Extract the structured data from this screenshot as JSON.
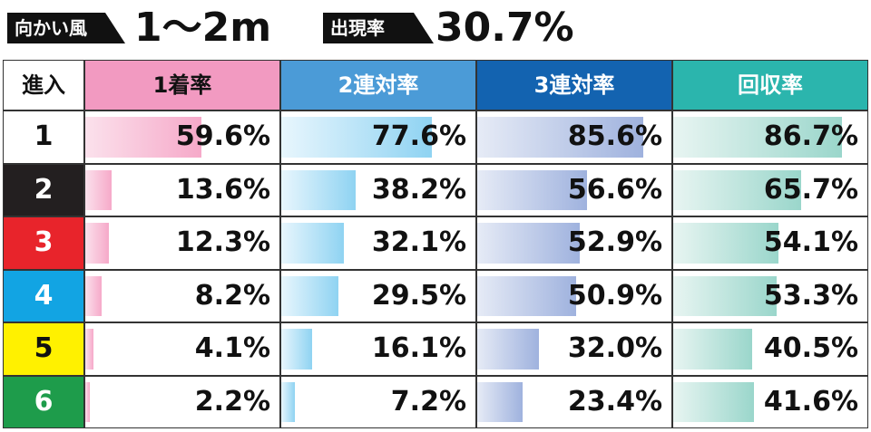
{
  "header": {
    "wind_label": "向かい風",
    "wind_value": "1〜2m",
    "rate_label": "出現率",
    "rate_value": "30.7%"
  },
  "chart_data": {
    "type": "table",
    "row_header": "進入",
    "columns": [
      {
        "name": "1着率",
        "color": "#f29ac1",
        "bar_from": "#fbe1ec",
        "bar_to": "#f6a9c9",
        "text": "#111111"
      },
      {
        "name": "2連対率",
        "color": "#4b9bd7",
        "bar_from": "#e8f6fd",
        "bar_to": "#8fd3f2",
        "text": "#ffffff"
      },
      {
        "name": "3連対率",
        "color": "#1363b0",
        "bar_from": "#e6ebf6",
        "bar_to": "#9fb2de",
        "text": "#ffffff"
      },
      {
        "name": "回収率",
        "color": "#2bb5ad",
        "bar_from": "#e8f5f2",
        "bar_to": "#9ad6cb",
        "text": "#ffffff"
      }
    ],
    "rows": [
      {
        "lane": "1",
        "bg": "#ffffff",
        "fg": "#111111",
        "values": [
          59.6,
          77.6,
          85.6,
          86.7
        ],
        "labels": [
          "59.6%",
          "77.6%",
          "85.6%",
          "86.7%"
        ]
      },
      {
        "lane": "2",
        "bg": "#231f20",
        "fg": "#ffffff",
        "values": [
          13.6,
          38.2,
          56.6,
          65.7
        ],
        "labels": [
          "13.6%",
          "38.2%",
          "56.6%",
          "65.7%"
        ]
      },
      {
        "lane": "3",
        "bg": "#e8242b",
        "fg": "#ffffff",
        "values": [
          12.3,
          32.1,
          52.9,
          54.1
        ],
        "labels": [
          "12.3%",
          "32.1%",
          "52.9%",
          "54.1%"
        ]
      },
      {
        "lane": "4",
        "bg": "#12a4e3",
        "fg": "#ffffff",
        "values": [
          8.2,
          29.5,
          50.9,
          53.3
        ],
        "labels": [
          "8.2%",
          "29.5%",
          "50.9%",
          "53.3%"
        ]
      },
      {
        "lane": "5",
        "bg": "#fff100",
        "fg": "#111111",
        "values": [
          4.1,
          16.1,
          32.0,
          40.5
        ],
        "labels": [
          "4.1%",
          "16.1%",
          "32.0%",
          "40.5%"
        ]
      },
      {
        "lane": "6",
        "bg": "#1e9c4b",
        "fg": "#ffffff",
        "values": [
          2.2,
          7.2,
          23.4,
          41.6
        ],
        "labels": [
          "2.2%",
          "7.2%",
          "23.4%",
          "41.6%"
        ]
      }
    ],
    "ylim": [
      0,
      100
    ]
  }
}
